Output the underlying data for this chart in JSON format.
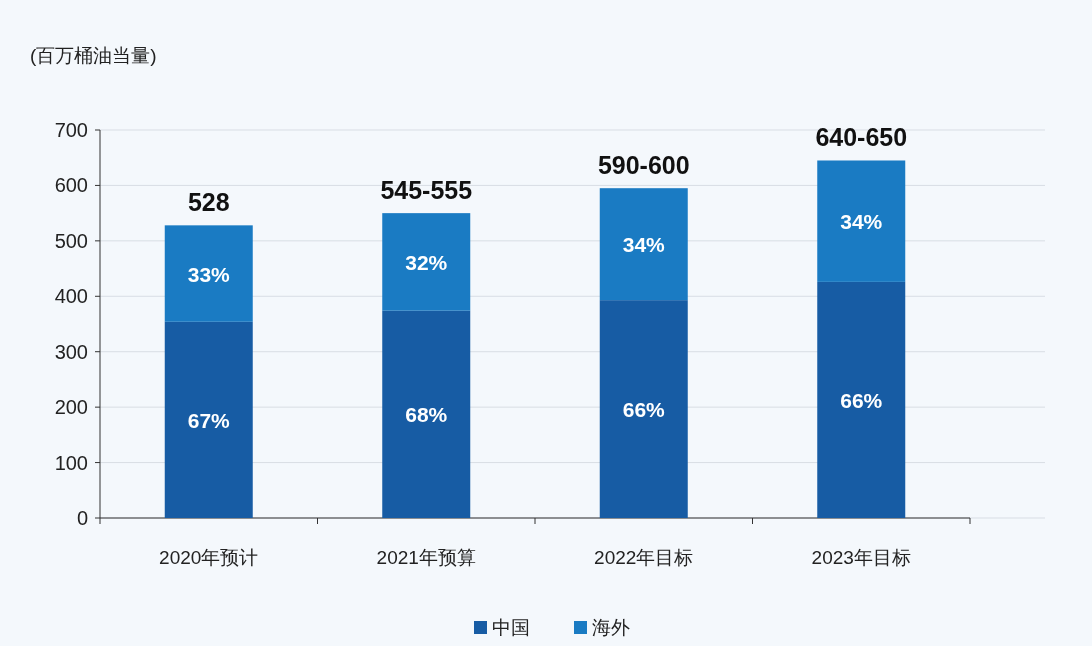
{
  "chart_data": {
    "type": "bar",
    "stacked": true,
    "ylabel": "(百万桶油当量)",
    "categories": [
      "2020年预计",
      "2021年预算",
      "2022年目标",
      "2023年目标"
    ],
    "series": [
      {
        "name": "中国",
        "color": "#175ca4",
        "values": [
          354,
          374,
          393,
          426
        ]
      },
      {
        "name": "海外",
        "color": "#1a7bc3",
        "values": [
          174,
          176,
          202,
          219
        ]
      }
    ],
    "annotations": [
      "67%",
      "68%",
      "66%",
      "66%",
      "33%",
      "32%",
      "34%",
      "34%"
    ],
    "totals": [
      "528",
      "545-555",
      "590-600",
      "640-650"
    ],
    "ylim": [
      0,
      700
    ],
    "yticks": [
      0,
      100,
      200,
      300,
      400,
      500,
      600,
      700
    ],
    "grid": "y",
    "legend": "bottom"
  }
}
